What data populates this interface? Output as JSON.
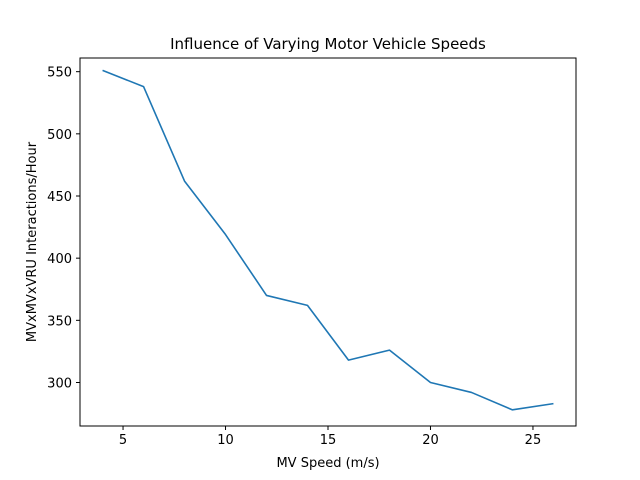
{
  "chart_data": {
    "type": "line",
    "title": "Influence of Varying Motor Vehicle Speeds",
    "xlabel": "MV Speed (m/s)",
    "ylabel": "MVxMVxVRU Interactions/Hour",
    "xlim": [
      2.9,
      27.1
    ],
    "ylim": [
      265,
      561
    ],
    "xticks": [
      5,
      10,
      15,
      20,
      25
    ],
    "yticks": [
      300,
      350,
      400,
      450,
      500,
      550
    ],
    "grid": false,
    "color": "#1f77b4",
    "series": [
      {
        "x": [
          4,
          6,
          8,
          10,
          12,
          14,
          16,
          18,
          20,
          22,
          24,
          26
        ],
        "y": [
          551,
          538,
          462,
          419,
          370,
          362,
          318,
          326,
          300,
          292,
          278,
          283
        ]
      }
    ]
  }
}
